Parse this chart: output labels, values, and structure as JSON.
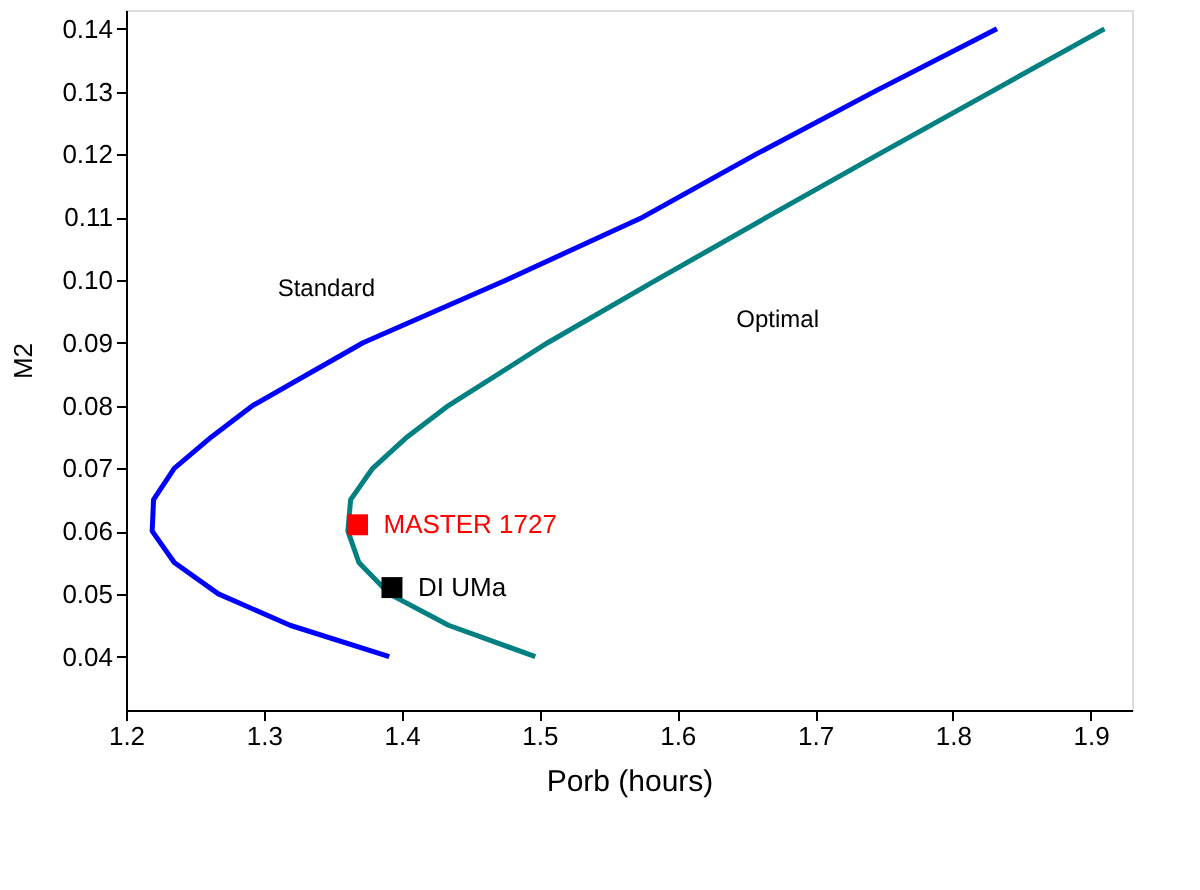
{
  "chart_data": {
    "type": "line",
    "xlabel": "Porb (hours)",
    "ylabel": "M2",
    "xlim": [
      1.2,
      1.93
    ],
    "ylim": [
      0.0315,
      0.143
    ],
    "xticks": [
      1.2,
      1.3,
      1.4,
      1.5,
      1.6,
      1.7,
      1.8,
      1.9
    ],
    "yticks": [
      0.04,
      0.05,
      0.06,
      0.07,
      0.08,
      0.09,
      {
        "value": 0.1,
        "label": "0.10"
      },
      0.11,
      0.12,
      0.13,
      0.14
    ],
    "grid": false,
    "line_style": "solid",
    "annotations": [
      "Standard",
      "Optimal"
    ],
    "series": [
      {
        "color": "#0000ff",
        "x": [
          1.391,
          1.319,
          1.267,
          1.235,
          1.219,
          1.22,
          1.235,
          1.262,
          1.292,
          1.372,
          1.476,
          1.575,
          1.657,
          1.743,
          1.832
        ],
        "values": [
          0.04,
          0.045,
          0.05,
          0.055,
          0.06,
          0.065,
          0.07,
          0.075,
          0.08,
          0.09,
          0.1,
          0.11,
          0.12,
          0.13,
          0.14
        ]
      },
      {
        "color": "#008080",
        "x": [
          1.497,
          1.434,
          1.391,
          1.369,
          1.361,
          1.363,
          1.379,
          1.404,
          1.434,
          1.506,
          1.585,
          1.665,
          1.746,
          1.828,
          1.91
        ],
        "values": [
          0.04,
          0.045,
          0.05,
          0.055,
          0.06,
          0.065,
          0.07,
          0.075,
          0.08,
          0.09,
          0.1,
          0.11,
          0.12,
          0.13,
          0.14
        ]
      },
      {
        "name": "MASTER 1727",
        "type": "scatter",
        "marker": "square",
        "color": "#ff0000",
        "x": [
          1.368
        ],
        "values": [
          0.061
        ]
      },
      {
        "name": "DI UMa",
        "type": "scatter",
        "marker": "square",
        "color": "#000000",
        "x": [
          1.393
        ],
        "values": [
          0.051
        ]
      }
    ]
  }
}
